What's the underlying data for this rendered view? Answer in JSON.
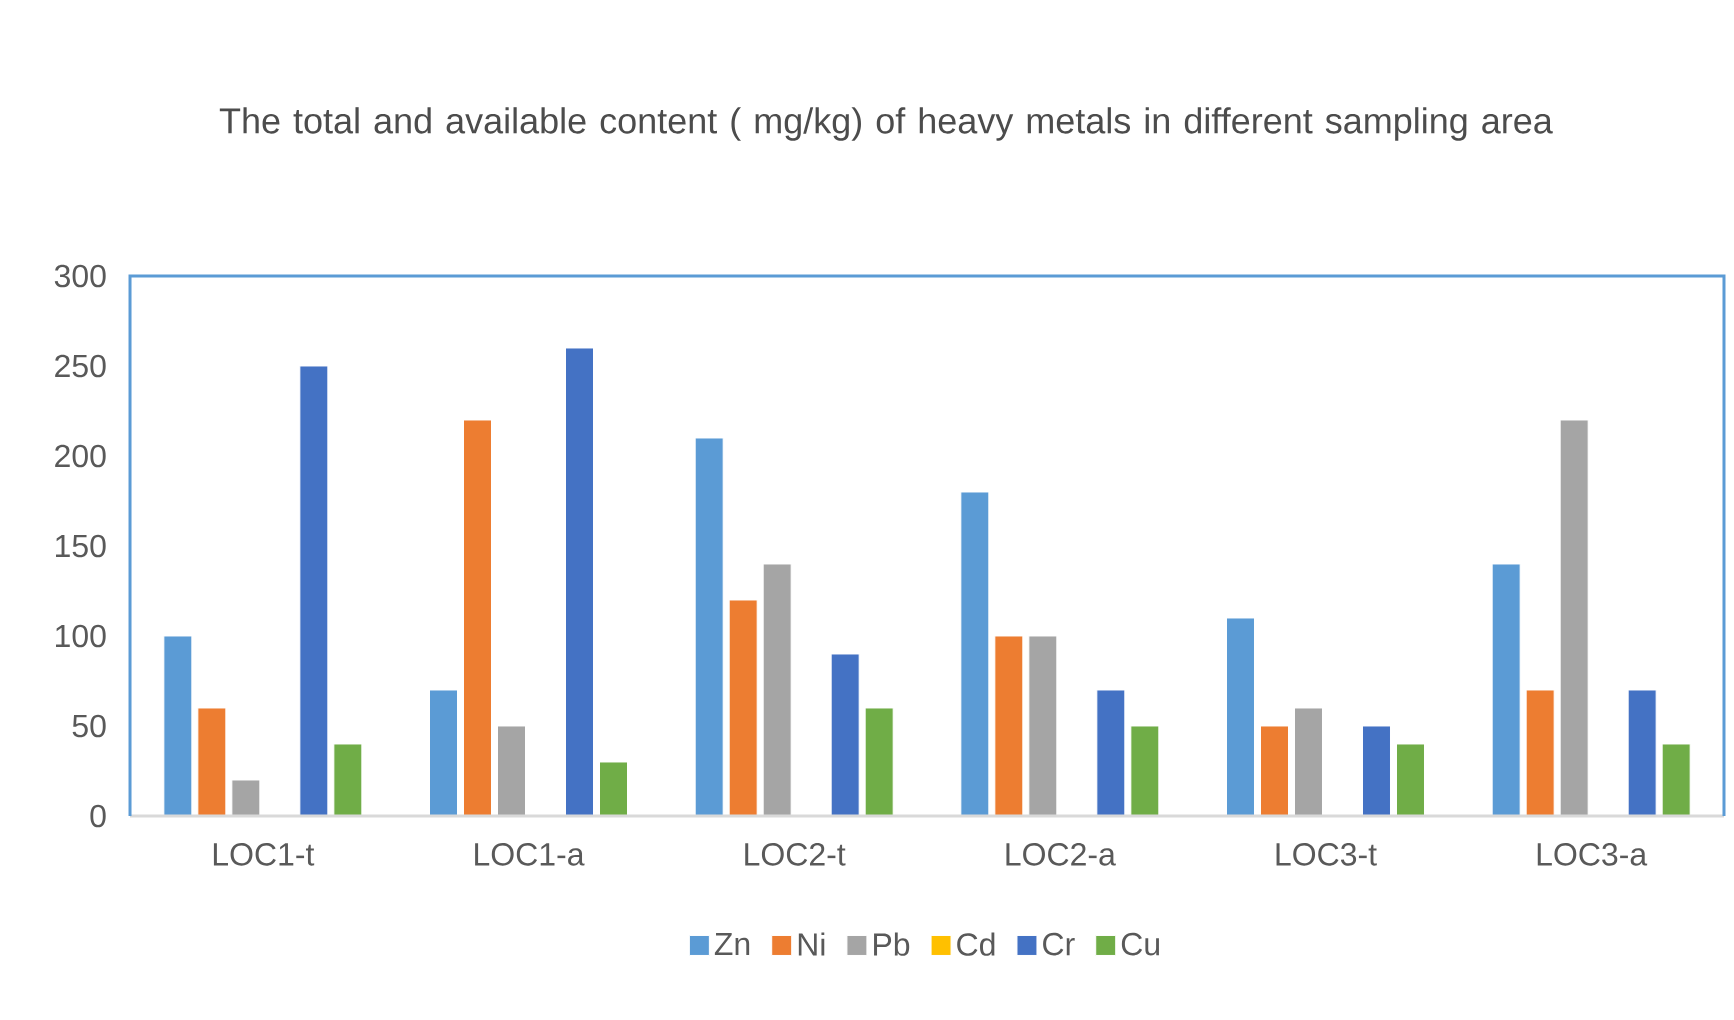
{
  "chart_data": {
    "type": "bar",
    "title": "The total and available content ( mg/kg) of heavy metals in different sampling area",
    "categories": [
      "LOC1-t",
      "LOC1-a",
      "LOC2-t",
      "LOC2-a",
      "LOC3-t",
      "LOC3-a"
    ],
    "series": [
      {
        "name": "Zn",
        "color": "#5b9bd5",
        "values": [
          100,
          70,
          210,
          180,
          110,
          140
        ]
      },
      {
        "name": "Ni",
        "color": "#ed7d31",
        "values": [
          60,
          220,
          120,
          100,
          50,
          70
        ]
      },
      {
        "name": "Pb",
        "color": "#a5a5a5",
        "values": [
          20,
          50,
          140,
          100,
          60,
          220
        ]
      },
      {
        "name": "Cd",
        "color": "#ffc000",
        "values": [
          0,
          0,
          0,
          0,
          0,
          0
        ]
      },
      {
        "name": "Cr",
        "color": "#4472c4",
        "values": [
          250,
          260,
          90,
          70,
          50,
          70
        ]
      },
      {
        "name": "Cu",
        "color": "#70ad47",
        "values": [
          40,
          30,
          60,
          50,
          40,
          40
        ]
      }
    ],
    "ylim": [
      0,
      300
    ],
    "yticks": [
      0,
      50,
      100,
      150,
      200,
      250,
      300
    ],
    "grid": false,
    "legend": "bottom"
  }
}
